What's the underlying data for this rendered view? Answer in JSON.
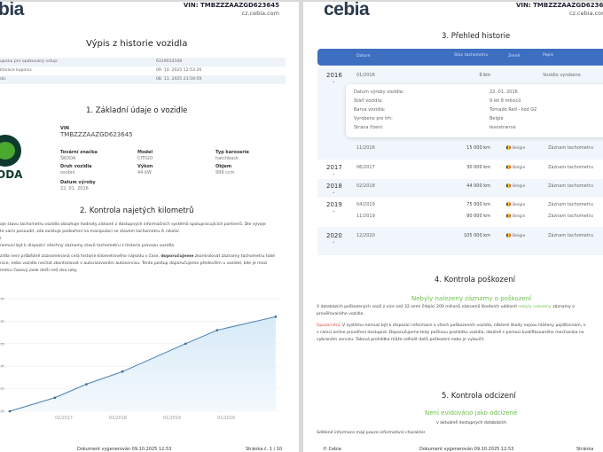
{
  "header": {
    "logo_left": "bia",
    "logo_right": "cebia",
    "vin": "VIN: TMBZZZAAZGD623645",
    "web": "cz.cebia.com"
  },
  "page1": {
    "title": "Výpis z historie vozidla",
    "coupon": [
      {
        "label": "uponu pro opakovaný vstup:",
        "value": "6319014108"
      },
      {
        "label": "ktivace kuponu:",
        "value": "09. 10. 2025 12:53:26"
      },
      {
        "label": "do:",
        "value": "08. 11. 2025 23:59:59"
      }
    ],
    "section1": "1. Základní údaje o vozidle",
    "brand_logo": "ODA",
    "vin_label": "VIN",
    "vin_value": "TMBZZZAAZGD623645",
    "fields": [
      {
        "label": "Tovární značka",
        "value": "ŠKODA"
      },
      {
        "label": "Model",
        "value": "CITIGO"
      },
      {
        "label": "Typ karoserie",
        "value": "hatchback"
      },
      {
        "label": "Druh vozidla",
        "value": "osobní"
      },
      {
        "label": "Výkon",
        "value": "44 kW"
      },
      {
        "label": "Objem",
        "value": "999 ccm"
      },
      {
        "label": "Datum výroby",
        "value": "22. 01. 2016"
      }
    ],
    "section2": "2. Kontrola najetých kilometrů",
    "paragraphs": [
      "oje stavu tachometru vozidla obsahuje hodnoty získané z dostupných informačních systémů spolupracujících partnerů. Dle vývoje",
      "te sami posoudit, zda existuje podezření na manipulaci se stavem tachometru či nikoliv.",
      "í",
      "nemusí být k dispozici všechny záznamy stavů tachometru z historie provozu vozidla."
    ],
    "para_rec": {
      "a": "zidla není průběžně zaznamenaná celá historie kilometrového nájezdu v čase, ",
      "bold": "doporučujeme",
      "b": " zkontrolovat záznamy tachometru také",
      "l2": "nice, nebo vozidlo nechat zkontrolovat v autorizovaném autoservisu. Tento postup doporučujeme především u vozidel, kde je mezi",
      "l3": "metru časový úsek delší než dva roky."
    },
    "footer": {
      "generated": "Dokument vygenerován 09.10.2025 12:53",
      "page": "Stránka č. 1 / 10"
    }
  },
  "chart_data": {
    "type": "area",
    "x": [
      "01/2016",
      "11/2016",
      "06/2017",
      "02/2018",
      "04/2019",
      "11/2019",
      "12/2020"
    ],
    "y": [
      0,
      15000,
      30000,
      44000,
      75000,
      90000,
      105000
    ],
    "ylim": [
      0,
      125000
    ],
    "xtick_labels": [
      "01/2017",
      "01/2018",
      "01/2019",
      "01/2020"
    ],
    "ytick_suffix": "km",
    "grid": true,
    "color": "#4a7fb0",
    "fill": "#d6eaf8"
  },
  "page2": {
    "section3": "3. Přehled historie",
    "columns": [
      "Datum",
      "Stav tachometru",
      "Země",
      "Popis"
    ],
    "rows": [
      {
        "year": "2016",
        "date": "01/2016",
        "km": "0 km",
        "country": "",
        "desc": "Vozidlo vyrobeno"
      },
      {
        "year": "",
        "date": "11/2016",
        "km": "15 000 km",
        "country": "Belgie",
        "desc": "Záznam tachometru"
      },
      {
        "year": "2017",
        "date": "06/2017",
        "km": "30 000 km",
        "country": "Belgie",
        "desc": "Záznam tachometru"
      },
      {
        "year": "2018",
        "date": "02/2018",
        "km": "44 000 km",
        "country": "Belgie",
        "desc": "Záznam tachometru"
      },
      {
        "year": "2019",
        "date": "04/2019",
        "km": "75 000 km",
        "country": "Belgie",
        "desc": "Záznam tachometru"
      },
      {
        "year": "",
        "date": "11/2019",
        "km": "90 000 km",
        "country": "Belgie",
        "desc": "Záznam tachometru"
      },
      {
        "year": "2020",
        "date": "12/2020",
        "km": "105 000 km",
        "country": "Belgie",
        "desc": "Záznam tachometru"
      }
    ],
    "detail": [
      {
        "label": "Datum výroby vozidla:",
        "value": "22. 01. 2016"
      },
      {
        "label": "Stáří vozidla:",
        "value": "9 let 8 měsíců"
      },
      {
        "label": "Barva vozidla:",
        "value": "Tornado Red - kód G2"
      },
      {
        "label": "Vyrobeno pro trh:",
        "value": "Belgie"
      },
      {
        "label": "Strana řízení:",
        "value": "levostranné"
      }
    ],
    "section4": "4. Kontrola poškození",
    "damage_headline": "Nebyly nalezeny záznamy o poškození",
    "damage_p1a": "V databázích poškozených vozů z více než 32 zemí čítající 200 milionů záznamů škodních událostí ",
    "damage_p1g": "nebyly nalezeny",
    "damage_p1b": " záznamy o",
    "damage_p1c": "prověřovaného vozidla.",
    "warn_label": "Upozornění:",
    "warn_l1": " V systému nemusí být k dispozici informace o všech poškozeních vozidla, některé škody nejsou hlášeny pojišťovnám, n",
    "warn_l2": "v rámci online prověření dostupné. Doporučujeme tedy pečlivou prohlídku vozidla, ideálně s pomocí kvalifikovaného mechanika ne",
    "warn_l3": "vybraném servisu. Taková prohlídka může odhalit další poškození nebo je vyloučit.",
    "section5": "5. Kontrola odcizení",
    "theft_headline": "Není evidováno jako odcizené",
    "theft_sub": "v aktuálně dostupných databázích",
    "note": "Sdělené informace mají pouze informativní charakter.",
    "footer": {
      "copyright": "© Cebia",
      "generated": "Dokument vygenerován 09.10.2025 12:53",
      "page": "Stránka"
    }
  }
}
